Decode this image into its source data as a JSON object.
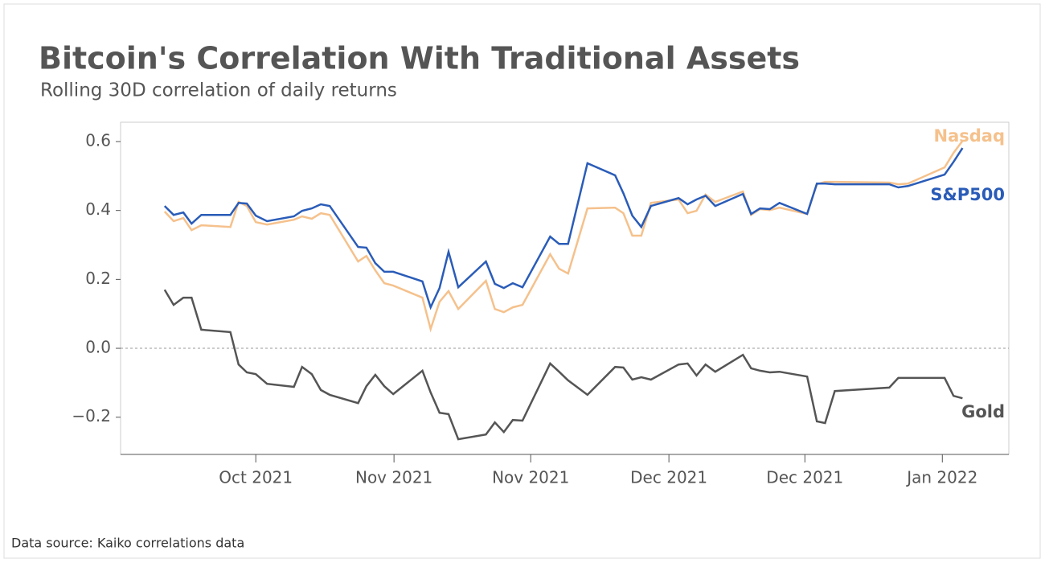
{
  "chart_data": {
    "type": "line",
    "title": "Bitcoin's Correlation With Traditional Assets",
    "subtitle": "Rolling 30D correlation of daily returns",
    "source": "Data source: Kaiko correlations data",
    "x": [
      -12.2,
      -11.0,
      -9.7,
      -8.6,
      -7.3,
      -3.4,
      -2.3,
      -1.2,
      0,
      1.5,
      5.1,
      6.2,
      7.5,
      8.7,
      9.9,
      13.7,
      14.8,
      16.0,
      17.2,
      18.4,
      22.3,
      23.4,
      24.6,
      25.8,
      27.1,
      30.8,
      32.0,
      33.2,
      34.4,
      35.7,
      39.4,
      40.6,
      41.8,
      44.4,
      48.1,
      49.2,
      50.4,
      51.6,
      52.9,
      56.6,
      57.8,
      59.0,
      60.2,
      61.5,
      65.2,
      66.3,
      67.5,
      68.8,
      70.1,
      73.8,
      75.1,
      76.2,
      77.5,
      84.8,
      86.0,
      87.3,
      92.2,
      93.4,
      94.6
    ],
    "series": [
      {
        "name": "Nasdaq",
        "color": "#f5c18c",
        "values": [
          0.397,
          0.369,
          0.378,
          0.343,
          0.357,
          0.352,
          0.425,
          0.413,
          0.366,
          0.359,
          0.373,
          0.383,
          0.376,
          0.392,
          0.387,
          0.252,
          0.268,
          0.226,
          0.189,
          0.182,
          0.147,
          0.056,
          0.135,
          0.166,
          0.114,
          0.196,
          0.114,
          0.105,
          0.119,
          0.126,
          0.273,
          0.231,
          0.217,
          0.406,
          0.408,
          0.392,
          0.327,
          0.327,
          0.422,
          0.432,
          0.392,
          0.399,
          0.446,
          0.425,
          0.455,
          0.387,
          0.404,
          0.401,
          0.408,
          0.39,
          0.476,
          0.483,
          0.483,
          0.481,
          0.476,
          0.478,
          0.525,
          0.567,
          0.602
        ]
      },
      {
        "name": "S&P500",
        "color": "#2a5cb8",
        "values": [
          0.413,
          0.387,
          0.394,
          0.362,
          0.387,
          0.387,
          0.422,
          0.42,
          0.385,
          0.369,
          0.383,
          0.399,
          0.406,
          0.418,
          0.413,
          0.294,
          0.292,
          0.247,
          0.222,
          0.222,
          0.194,
          0.119,
          0.175,
          0.28,
          0.177,
          0.252,
          0.187,
          0.175,
          0.189,
          0.177,
          0.324,
          0.303,
          0.303,
          0.537,
          0.502,
          0.45,
          0.385,
          0.352,
          0.413,
          0.436,
          0.418,
          0.432,
          0.443,
          0.413,
          0.448,
          0.39,
          0.406,
          0.404,
          0.422,
          0.39,
          0.478,
          0.478,
          0.476,
          0.476,
          0.467,
          0.471,
          0.504,
          0.541,
          0.581
        ]
      },
      {
        "name": "Gold",
        "color": "#555555",
        "values": [
          0.17,
          0.126,
          0.147,
          0.147,
          0.054,
          0.047,
          -0.047,
          -0.07,
          -0.075,
          -0.103,
          -0.112,
          -0.054,
          -0.075,
          -0.121,
          -0.135,
          -0.159,
          -0.11,
          -0.077,
          -0.11,
          -0.133,
          -0.065,
          -0.128,
          -0.187,
          -0.191,
          -0.264,
          -0.25,
          -0.215,
          -0.243,
          -0.208,
          -0.21,
          -0.044,
          -0.068,
          -0.093,
          -0.135,
          -0.054,
          -0.056,
          -0.091,
          -0.084,
          -0.091,
          -0.047,
          -0.044,
          -0.079,
          -0.047,
          -0.068,
          -0.019,
          -0.058,
          -0.065,
          -0.07,
          -0.068,
          -0.082,
          -0.212,
          -0.217,
          -0.124,
          -0.114,
          -0.086,
          -0.086,
          -0.086,
          -0.138,
          -0.145
        ]
      }
    ],
    "xlim": [
      -18.1,
      100.8
    ],
    "xticks": [
      {
        "value": 0,
        "label": "Oct 2021"
      },
      {
        "value": 18.5,
        "label": "Nov 2021"
      },
      {
        "value": 36.8,
        "label": "Nov 2021"
      },
      {
        "value": 55.3,
        "label": "Dec 2021"
      },
      {
        "value": 73.5,
        "label": "Dec 2021"
      },
      {
        "value": 91.9,
        "label": "Jan 2022"
      }
    ],
    "ylim": [
      -0.308,
      0.656
    ],
    "yticks": [
      {
        "value": -0.2,
        "label": "−0.2"
      },
      {
        "value": 0,
        "label": "0.0"
      },
      0.2,
      0.4,
      0.6
    ],
    "zero_line": true
  }
}
